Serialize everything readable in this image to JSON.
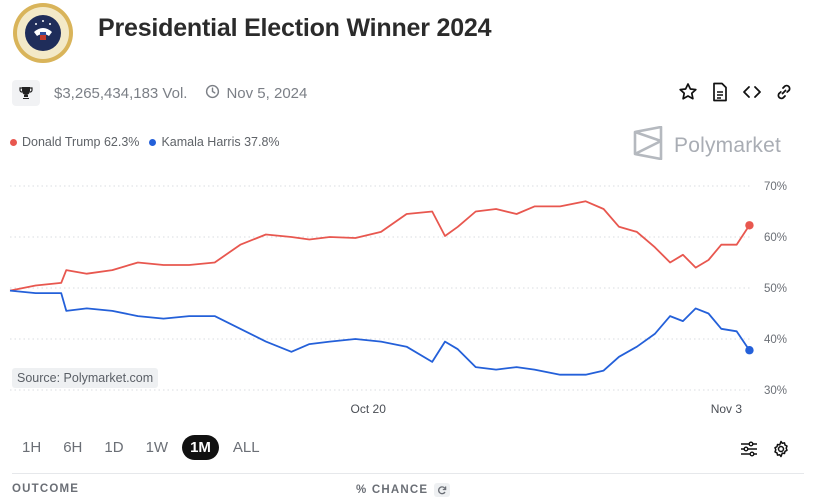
{
  "header": {
    "title": "Presidential Election Winner 2024",
    "volume": "$3,265,434,183 Vol.",
    "date": "Nov 5, 2024"
  },
  "legend": [
    {
      "label": "Donald Trump 62.3%",
      "color": "#e8574f"
    },
    {
      "label": "Kamala Harris 37.8%",
      "color": "#2460d9"
    }
  ],
  "brand": "Polymarket",
  "source": "Source: Polymarket.com",
  "icons": {
    "seal": "presidential-seal-icon",
    "trophy": "trophy-icon",
    "clock": "clock-icon",
    "star": "star-icon",
    "document": "document-icon",
    "embed": "code-icon",
    "link": "link-icon",
    "filters": "sliders-icon",
    "settings": "gear-icon",
    "refresh": "refresh-icon",
    "brand": "polymarket-logo-icon"
  },
  "time_ranges": [
    "1H",
    "6H",
    "1D",
    "1W",
    "1M",
    "ALL"
  ],
  "active_range": "1M",
  "table_header": {
    "outcome": "OUTCOME",
    "chance": "% CHANCE"
  },
  "chart_data": {
    "type": "line",
    "x_ticks": [
      {
        "label": "Oct 20",
        "x": 20
      },
      {
        "label": "Nov 3",
        "x": 34
      }
    ],
    "y_ticks": [
      "70%",
      "60%",
      "50%",
      "40%",
      "30%"
    ],
    "ylim": [
      30,
      70
    ],
    "xlim": [
      6,
      35
    ],
    "grid": true,
    "series": [
      {
        "name": "Donald Trump",
        "color": "#e8574f",
        "end_label": "62.3%",
        "x": [
          6.0,
          7.0,
          8.0,
          8.2,
          9.0,
          10.0,
          11.0,
          12.0,
          13.0,
          14.0,
          15.0,
          16.0,
          17.0,
          17.7,
          18.5,
          19.5,
          20.5,
          21.5,
          22.5,
          23.0,
          23.5,
          24.2,
          25.0,
          25.8,
          26.5,
          27.5,
          28.5,
          29.2,
          29.8,
          30.5,
          31.2,
          31.8,
          32.3,
          32.8,
          33.3,
          33.8,
          34.4,
          34.9
        ],
        "y": [
          49.5,
          50.5,
          51.0,
          53.5,
          52.8,
          53.5,
          55.0,
          54.5,
          54.5,
          55.0,
          58.5,
          60.5,
          60.0,
          59.5,
          60.0,
          59.8,
          61.0,
          64.5,
          65.0,
          60.2,
          62.0,
          65.0,
          65.5,
          64.5,
          66.0,
          66.0,
          67.0,
          65.5,
          62.0,
          61.0,
          58.0,
          55.0,
          56.5,
          54.0,
          55.5,
          58.5,
          58.5,
          62.3
        ]
      },
      {
        "name": "Kamala Harris",
        "color": "#2460d9",
        "end_label": "37.8%",
        "x": [
          6.0,
          7.0,
          8.0,
          8.2,
          9.0,
          10.0,
          11.0,
          12.0,
          13.0,
          14.0,
          15.0,
          16.0,
          17.0,
          17.7,
          18.5,
          19.5,
          20.5,
          21.5,
          22.5,
          23.0,
          23.5,
          24.2,
          25.0,
          25.8,
          26.5,
          27.5,
          28.5,
          29.2,
          29.8,
          30.5,
          31.2,
          31.8,
          32.3,
          32.8,
          33.3,
          33.8,
          34.4,
          34.9
        ],
        "y": [
          49.5,
          49.0,
          49.0,
          45.5,
          46.0,
          45.5,
          44.5,
          44.0,
          44.5,
          44.5,
          42.0,
          39.5,
          37.5,
          39.0,
          39.5,
          40.0,
          39.5,
          38.5,
          35.5,
          39.5,
          38.0,
          34.5,
          34.0,
          34.5,
          34.0,
          33.0,
          33.0,
          33.8,
          36.5,
          38.5,
          41.0,
          44.5,
          43.5,
          46.0,
          45.0,
          42.0,
          41.5,
          37.8
        ]
      }
    ]
  }
}
